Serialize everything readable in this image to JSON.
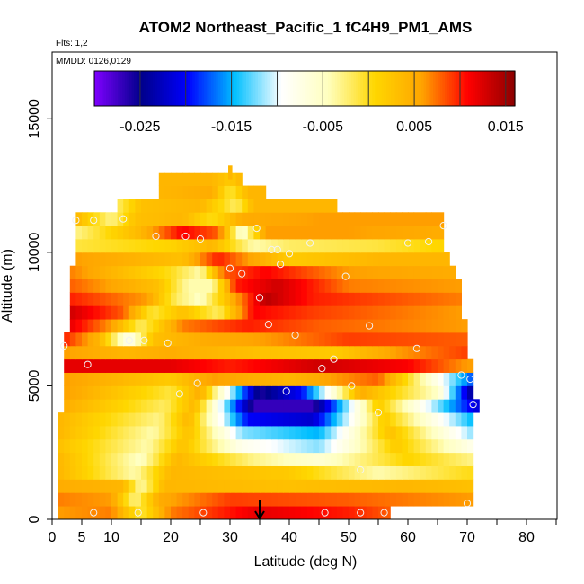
{
  "chart_data": {
    "type": "heatmap",
    "title": "ATOM2 Northeast_Pacific_1 fC4H9_PM1_AMS",
    "annotations": [
      "Flts: 1,2",
      "MMDD: 0126,0129"
    ],
    "xlabel": "Latitude (deg N)",
    "ylabel": "Altitude (m)",
    "xlim": [
      0,
      85
    ],
    "ylim": [
      0,
      17500
    ],
    "x_ticks": [
      0,
      5,
      10,
      20,
      30,
      40,
      50,
      60,
      70,
      80
    ],
    "x_tick_labels": [
      "0",
      "5",
      "10",
      "20",
      "30",
      "40",
      "50",
      "60",
      "70",
      "80"
    ],
    "y_ticks": [
      0,
      5000,
      10000,
      15000
    ],
    "y_tick_labels": [
      "0",
      "5000",
      "10000",
      "15000"
    ],
    "colorbar": {
      "range": [
        -0.03,
        0.016
      ],
      "ticks": [
        -0.025,
        -0.015,
        -0.005,
        0.005,
        0.015
      ],
      "tick_labels": [
        "-0.025",
        "-0.015",
        "-0.005",
        "0.005",
        "0.015"
      ],
      "colors": [
        "#7f00ff",
        "#00008b",
        "#0000ff",
        "#00bfff",
        "#ffffff",
        "#ffffbf",
        "#ffd700",
        "#ffa500",
        "#ff0000",
        "#8b0000"
      ]
    },
    "marker": {
      "latitude": 35,
      "symbol": "down-arrow"
    },
    "rows": [
      {
        "alt": 250,
        "lat_min": 1,
        "lat_max": 57,
        "pattern": [
          [
            1,
            0.006
          ],
          [
            10,
            0.007
          ],
          [
            15,
            -0.001
          ],
          [
            20,
            0.007
          ],
          [
            35,
            0.012
          ],
          [
            50,
            0.01
          ],
          [
            57,
            0.008
          ]
        ]
      },
      {
        "alt": 750,
        "lat_min": 1,
        "lat_max": 71,
        "pattern": [
          [
            1,
            0.007
          ],
          [
            10,
            0.006
          ],
          [
            14,
            -0.003
          ],
          [
            18,
            0.005
          ],
          [
            30,
            0.009
          ],
          [
            50,
            0.008
          ],
          [
            71,
            0.006
          ]
        ]
      },
      {
        "alt": 1250,
        "lat_min": 1,
        "lat_max": 71,
        "pattern": [
          [
            1,
            0.005
          ],
          [
            12,
            0.004
          ],
          [
            15,
            -0.004
          ],
          [
            19,
            0.004
          ],
          [
            40,
            0.003
          ],
          [
            60,
            0.004
          ],
          [
            71,
            0.003
          ]
        ]
      },
      {
        "alt": 1750,
        "lat_min": 1,
        "lat_max": 71,
        "pattern": [
          [
            1,
            0.004
          ],
          [
            14,
            -0.004
          ],
          [
            20,
            0.004
          ],
          [
            40,
            0.002
          ],
          [
            55,
            -0.004
          ],
          [
            70,
            0.0
          ]
        ]
      },
      {
        "alt": 2250,
        "lat_min": 1,
        "lat_max": 71,
        "pattern": [
          [
            1,
            0.004
          ],
          [
            15,
            -0.005
          ],
          [
            21,
            0.004
          ],
          [
            34,
            -0.003
          ],
          [
            45,
            -0.006
          ],
          [
            60,
            0.001
          ],
          [
            71,
            -0.003
          ]
        ]
      },
      {
        "alt": 2750,
        "lat_min": 1,
        "lat_max": 71,
        "pattern": [
          [
            1,
            0.003
          ],
          [
            16,
            -0.004
          ],
          [
            22,
            0.003
          ],
          [
            32,
            -0.008
          ],
          [
            45,
            -0.012
          ],
          [
            58,
            0.002
          ],
          [
            71,
            -0.008
          ]
        ]
      },
      {
        "alt": 3250,
        "lat_min": 1,
        "lat_max": 71,
        "pattern": [
          [
            1,
            0.004
          ],
          [
            17,
            -0.004
          ],
          [
            23,
            0.003
          ],
          [
            32,
            -0.012
          ],
          [
            45,
            -0.015
          ],
          [
            57,
            0.003
          ],
          [
            71,
            -0.012
          ]
        ]
      },
      {
        "alt": 3750,
        "lat_min": 1,
        "lat_max": 71,
        "pattern": [
          [
            1,
            0.004
          ],
          [
            18,
            -0.003
          ],
          [
            23,
            0.004
          ],
          [
            33,
            -0.02
          ],
          [
            44,
            -0.022
          ],
          [
            56,
            0.002
          ],
          [
            71,
            -0.015
          ]
        ]
      },
      {
        "alt": 4250,
        "lat_min": 2,
        "lat_max": 72,
        "pattern": [
          [
            2,
            0.005
          ],
          [
            19,
            -0.002
          ],
          [
            24,
            0.004
          ],
          [
            34,
            -0.027
          ],
          [
            44,
            -0.027
          ],
          [
            55,
            0.002
          ],
          [
            72,
            -0.022
          ]
        ]
      },
      {
        "alt": 4750,
        "lat_min": 2,
        "lat_max": 71,
        "pattern": [
          [
            2,
            0.006
          ],
          [
            20,
            -0.001
          ],
          [
            25,
            0.005
          ],
          [
            35,
            -0.026
          ],
          [
            42,
            -0.02
          ],
          [
            52,
            0.005
          ],
          [
            65,
            -0.005
          ],
          [
            71,
            -0.025
          ]
        ]
      },
      {
        "alt": 5250,
        "lat_min": 2,
        "lat_max": 71,
        "pattern": [
          [
            2,
            0.006
          ],
          [
            20,
            0.002
          ],
          [
            27,
            0.006
          ],
          [
            40,
            0.004
          ],
          [
            55,
            0.008
          ],
          [
            65,
            -0.008
          ],
          [
            71,
            -0.018
          ]
        ]
      },
      {
        "alt": 5750,
        "lat_min": 2,
        "lat_max": 71,
        "pattern": [
          [
            2,
            0.012
          ],
          [
            20,
            0.012
          ],
          [
            30,
            0.01
          ],
          [
            45,
            0.013
          ],
          [
            60,
            0.011
          ],
          [
            70,
            0.006
          ]
        ]
      },
      {
        "alt": 6250,
        "lat_min": 2,
        "lat_max": 70,
        "pattern": [
          [
            2,
            0.006
          ],
          [
            12,
            0.004
          ],
          [
            20,
            0.005
          ],
          [
            35,
            0.003
          ],
          [
            48,
            0.002
          ],
          [
            58,
            0.006
          ],
          [
            70,
            0.009
          ]
        ]
      },
      {
        "alt": 6750,
        "lat_min": 2,
        "lat_max": 70,
        "pattern": [
          [
            2,
            0.01
          ],
          [
            8,
            0.004
          ],
          [
            13,
            -0.008
          ],
          [
            17,
            0.003
          ],
          [
            25,
            0.005
          ],
          [
            36,
            0.006
          ],
          [
            50,
            0.009
          ],
          [
            70,
            0.008
          ]
        ]
      },
      {
        "alt": 7250,
        "lat_min": 3,
        "lat_max": 70,
        "pattern": [
          [
            3,
            0.012
          ],
          [
            10,
            0.006
          ],
          [
            15,
            -0.002
          ],
          [
            22,
            0.007
          ],
          [
            33,
            0.01
          ],
          [
            45,
            0.008
          ],
          [
            70,
            0.006
          ]
        ]
      },
      {
        "alt": 7750,
        "lat_min": 3,
        "lat_max": 69,
        "pattern": [
          [
            3,
            0.013
          ],
          [
            12,
            0.008
          ],
          [
            17,
            -0.001
          ],
          [
            22,
            0.003
          ],
          [
            28,
            -0.002
          ],
          [
            34,
            0.011
          ],
          [
            44,
            0.009
          ],
          [
            69,
            0.006
          ]
        ]
      },
      {
        "alt": 8250,
        "lat_min": 3,
        "lat_max": 69,
        "pattern": [
          [
            3,
            0.01
          ],
          [
            16,
            0.006
          ],
          [
            21,
            -0.002
          ],
          [
            25,
            -0.005
          ],
          [
            30,
            0.004
          ],
          [
            36,
            0.014
          ],
          [
            44,
            0.01
          ],
          [
            69,
            0.007
          ]
        ]
      },
      {
        "alt": 8750,
        "lat_min": 3,
        "lat_max": 69,
        "pattern": [
          [
            3,
            0.008
          ],
          [
            18,
            0.003
          ],
          [
            23,
            -0.004
          ],
          [
            27,
            -0.004
          ],
          [
            31,
            0.01
          ],
          [
            38,
            0.013
          ],
          [
            50,
            0.007
          ],
          [
            69,
            0.006
          ]
        ]
      },
      {
        "alt": 9250,
        "lat_min": 3,
        "lat_max": 68,
        "pattern": [
          [
            3,
            0.007
          ],
          [
            20,
            0.0
          ],
          [
            25,
            -0.004
          ],
          [
            29,
            0.008
          ],
          [
            36,
            0.011
          ],
          [
            50,
            0.006
          ],
          [
            68,
            0.005
          ]
        ]
      },
      {
        "alt": 9750,
        "lat_min": 4,
        "lat_max": 67,
        "pattern": [
          [
            4,
            0.006
          ],
          [
            22,
            0.003
          ],
          [
            28,
            0.01
          ],
          [
            33,
            0.006
          ],
          [
            40,
            0.002
          ],
          [
            55,
            0.004
          ],
          [
            67,
            0.004
          ]
        ]
      },
      {
        "alt": 10250,
        "lat_min": 4,
        "lat_max": 66,
        "pattern": [
          [
            4,
            -0.001
          ],
          [
            20,
            0.001
          ],
          [
            27,
            0.004
          ],
          [
            34,
            -0.004
          ],
          [
            40,
            -0.002
          ],
          [
            55,
            -0.001
          ],
          [
            66,
            0.001
          ]
        ]
      },
      {
        "alt": 10750,
        "lat_min": 4,
        "lat_max": 66,
        "pattern": [
          [
            4,
            -0.003
          ],
          [
            15,
            0.004
          ],
          [
            22,
            0.011
          ],
          [
            28,
            0.008
          ],
          [
            32,
            -0.006
          ],
          [
            36,
            0.006
          ],
          [
            50,
            0.006
          ],
          [
            66,
            0.005
          ]
        ]
      },
      {
        "alt": 11250,
        "lat_min": 4,
        "lat_max": 66,
        "pattern": [
          [
            4,
            0.004
          ],
          [
            10,
            -0.003
          ],
          [
            14,
            0.003
          ],
          [
            22,
            0.004
          ],
          [
            27,
            0.0
          ],
          [
            32,
            0.005
          ],
          [
            45,
            0.006
          ],
          [
            66,
            0.006
          ]
        ]
      },
      {
        "alt": 11750,
        "lat_min": 11,
        "lat_max": 48,
        "pattern": [
          [
            11,
            -0.002
          ],
          [
            15,
            0.003
          ],
          [
            25,
            0.004
          ],
          [
            31,
            -0.002
          ],
          [
            34,
            0.004
          ],
          [
            48,
            0.004
          ]
        ]
      },
      {
        "alt": 12250,
        "lat_min": 18,
        "lat_max": 36,
        "pattern": [
          [
            18,
            0.004
          ],
          [
            27,
            0.005
          ],
          [
            30,
            -0.001
          ],
          [
            33,
            0.004
          ],
          [
            36,
            0.004
          ]
        ]
      },
      {
        "alt": 12750,
        "lat_min": 18,
        "lat_max": 32,
        "pattern": [
          [
            18,
            0.004
          ],
          [
            27,
            0.004
          ],
          [
            30,
            0.002
          ],
          [
            32,
            0.004
          ]
        ]
      },
      {
        "alt": 13000,
        "lat_min": 29.7,
        "lat_max": 30.3,
        "pattern": [
          [
            29.7,
            0.004
          ],
          [
            30.3,
            0.004
          ]
        ]
      }
    ],
    "points": [
      [
        7,
        250
      ],
      [
        14.5,
        250
      ],
      [
        25.5,
        250
      ],
      [
        46,
        250
      ],
      [
        52,
        250
      ],
      [
        56,
        250
      ],
      [
        70,
        600
      ],
      [
        52,
        1850
      ],
      [
        55,
        4000
      ],
      [
        71,
        4300
      ],
      [
        21.5,
        4700
      ],
      [
        24.5,
        5100
      ],
      [
        39.5,
        4800
      ],
      [
        50.5,
        5000
      ],
      [
        69,
        5400
      ],
      [
        70.5,
        5250
      ],
      [
        6,
        5800
      ],
      [
        45.5,
        5650
      ],
      [
        47.5,
        6000
      ],
      [
        2,
        6500
      ],
      [
        19.5,
        6600
      ],
      [
        13,
        6700
      ],
      [
        15.5,
        6700
      ],
      [
        41,
        6900
      ],
      [
        61.5,
        6400
      ],
      [
        36.5,
        7300
      ],
      [
        53.5,
        7250
      ],
      [
        35,
        8300
      ],
      [
        30,
        9400
      ],
      [
        32,
        9200
      ],
      [
        49.5,
        9100
      ],
      [
        38.5,
        9550
      ],
      [
        37,
        10100
      ],
      [
        38,
        10100
      ],
      [
        40,
        9950
      ],
      [
        43.5,
        10350
      ],
      [
        22.5,
        10600
      ],
      [
        25,
        10500
      ],
      [
        17.5,
        10600
      ],
      [
        4,
        11200
      ],
      [
        7,
        11200
      ],
      [
        12,
        11250
      ],
      [
        34.5,
        10900
      ],
      [
        60,
        10350
      ],
      [
        63.5,
        10400
      ],
      [
        66,
        11000
      ]
    ]
  }
}
